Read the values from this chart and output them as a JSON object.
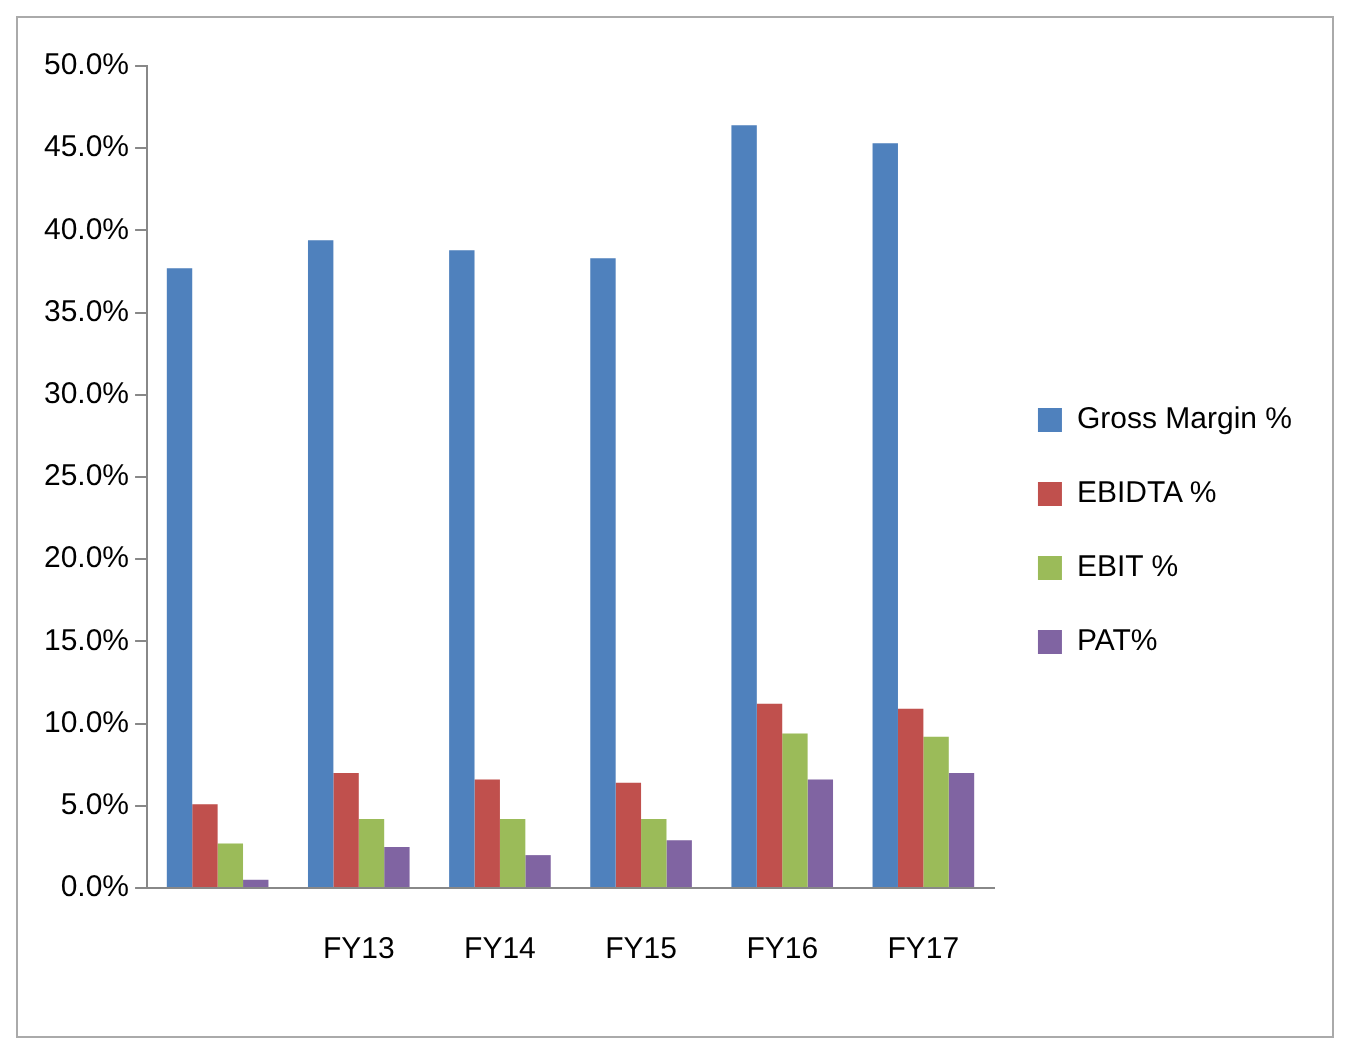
{
  "chart_data": {
    "type": "bar",
    "categories": [
      null,
      "FY13",
      "FY14",
      "FY15",
      "FY16",
      "FY17"
    ],
    "series": [
      {
        "name": "Gross Margin %",
        "color": "#4f81bd",
        "values": [
          37.7,
          39.4,
          38.8,
          38.3,
          46.4,
          45.3
        ]
      },
      {
        "name": "EBIDTA %",
        "color": "#c0504d",
        "values": [
          5.1,
          7.0,
          6.6,
          6.4,
          11.2,
          10.9
        ]
      },
      {
        "name": "EBIT %",
        "color": "#9bbb59",
        "values": [
          2.7,
          4.2,
          4.2,
          4.2,
          9.4,
          9.2
        ]
      },
      {
        "name": "PAT%",
        "color": "#8064a2",
        "values": [
          0.5,
          2.5,
          2.0,
          2.9,
          6.6,
          7.0
        ]
      }
    ],
    "ylim": [
      0,
      50
    ],
    "yticks": [
      {
        "value": 0,
        "label": "0.0%"
      },
      {
        "value": 5,
        "label": "5.0%"
      },
      {
        "value": 10,
        "label": "10.0%"
      },
      {
        "value": 15,
        "label": "15.0%"
      },
      {
        "value": 20,
        "label": "20.0%"
      },
      {
        "value": 25,
        "label": "25.0%"
      },
      {
        "value": 30,
        "label": "30.0%"
      },
      {
        "value": 35,
        "label": "35.0%"
      },
      {
        "value": 40,
        "label": "40.0%"
      },
      {
        "value": 45,
        "label": "45.0%"
      },
      {
        "value": 50,
        "label": "50.0%"
      }
    ],
    "grid": false,
    "legend": "right"
  }
}
